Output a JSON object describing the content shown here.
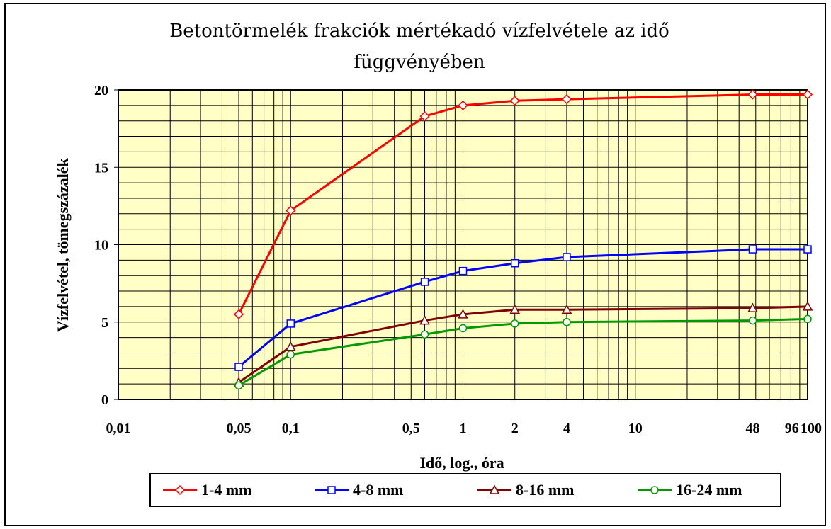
{
  "chart_data": {
    "type": "line",
    "title_line1": "Betontörmelék frakciók mértékadó vízfelvétele az idő",
    "title_line2": "függvényében",
    "xlabel": "Idő, log., óra",
    "ylabel": "Vízfelvétel, tömegszázalék",
    "x_scale": "log",
    "xlim": [
      0.01,
      100
    ],
    "ylim": [
      0,
      20
    ],
    "x_ticks": [
      {
        "value": 0.01,
        "label": "0,01"
      },
      {
        "value": 0.05,
        "label": "0,05"
      },
      {
        "value": 0.1,
        "label": "0,1"
      },
      {
        "value": 0.5,
        "label": "0,5"
      },
      {
        "value": 1,
        "label": "1"
      },
      {
        "value": 2,
        "label": "2"
      },
      {
        "value": 4,
        "label": "4"
      },
      {
        "value": 10,
        "label": "10"
      },
      {
        "value": 48,
        "label": "48"
      },
      {
        "value": 96,
        "label": "96"
      },
      {
        "value": 100,
        "label": "100"
      }
    ],
    "y_ticks": [
      {
        "value": 0,
        "label": "0"
      },
      {
        "value": 5,
        "label": "5"
      },
      {
        "value": 10,
        "label": "10"
      },
      {
        "value": 15,
        "label": "15"
      },
      {
        "value": 20,
        "label": "20"
      }
    ],
    "grid": true,
    "legend_position": "bottom",
    "plot_background": "#ffffc6",
    "series": [
      {
        "name": "1-4 mm",
        "color": "#ff0000",
        "marker": "diamond",
        "points": [
          [
            0.05,
            5.5
          ],
          [
            0.1,
            12.2
          ],
          [
            0.6,
            18.3
          ],
          [
            1,
            19.0
          ],
          [
            2,
            19.3
          ],
          [
            4,
            19.4
          ],
          [
            48,
            19.7
          ],
          [
            100,
            19.7
          ]
        ]
      },
      {
        "name": "4-8 mm",
        "color": "#0000ff",
        "marker": "square",
        "points": [
          [
            0.05,
            2.1
          ],
          [
            0.1,
            4.9
          ],
          [
            0.6,
            7.6
          ],
          [
            1,
            8.3
          ],
          [
            2,
            8.8
          ],
          [
            4,
            9.2
          ],
          [
            48,
            9.7
          ],
          [
            100,
            9.7
          ]
        ]
      },
      {
        "name": "8-16 mm",
        "color": "#800000",
        "marker": "triangle",
        "points": [
          [
            0.05,
            1.1
          ],
          [
            0.1,
            3.4
          ],
          [
            0.6,
            5.1
          ],
          [
            1,
            5.5
          ],
          [
            2,
            5.8
          ],
          [
            4,
            5.8
          ],
          [
            48,
            5.9
          ],
          [
            100,
            6.0
          ]
        ]
      },
      {
        "name": "16-24 mm",
        "color": "#009900",
        "marker": "circle",
        "points": [
          [
            0.05,
            0.9
          ],
          [
            0.1,
            2.9
          ],
          [
            0.6,
            4.2
          ],
          [
            1,
            4.6
          ],
          [
            2,
            4.9
          ],
          [
            4,
            5.0
          ],
          [
            48,
            5.1
          ],
          [
            100,
            5.2
          ]
        ]
      }
    ]
  }
}
